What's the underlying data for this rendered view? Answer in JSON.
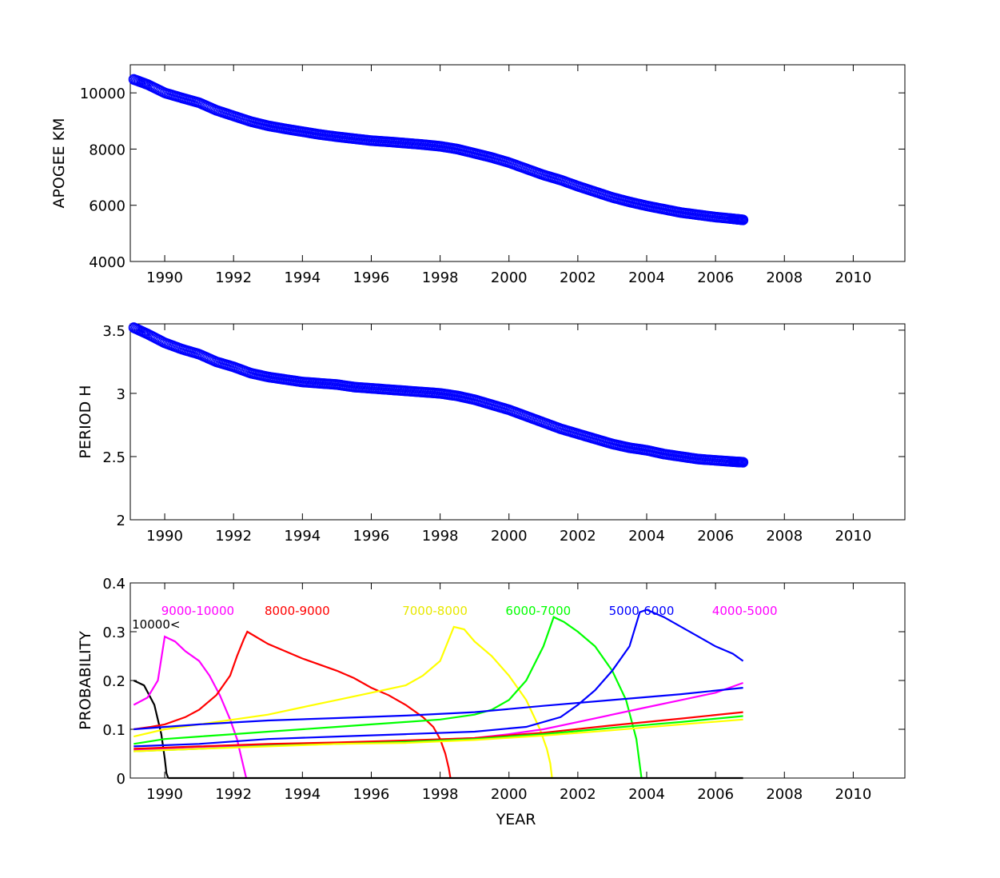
{
  "chart_data": [
    {
      "type": "scatter",
      "ylabel": "APOGEE KM",
      "xlabel": "",
      "xlim": [
        1989,
        2011.5
      ],
      "ylim": [
        4000,
        11000
      ],
      "xticks": [
        1990,
        1992,
        1994,
        1996,
        1998,
        2000,
        2002,
        2004,
        2006,
        2008,
        2010
      ],
      "yticks": [
        4000,
        6000,
        8000,
        10000
      ],
      "marker": "circle",
      "color": "#0000ff",
      "x": [
        1989.1,
        1989.5,
        1990,
        1990.5,
        1991,
        1991.5,
        1992,
        1992.5,
        1993,
        1993.5,
        1994,
        1994.5,
        1995,
        1995.5,
        1996,
        1996.5,
        1997,
        1997.5,
        1998,
        1998.5,
        1999,
        1999.5,
        2000,
        2000.5,
        2001,
        2001.5,
        2002,
        2002.5,
        2003,
        2003.5,
        2004,
        2004.5,
        2005,
        2005.5,
        2006,
        2006.5,
        2006.8
      ],
      "y": [
        10480,
        10300,
        10000,
        9820,
        9650,
        9380,
        9180,
        8980,
        8830,
        8720,
        8620,
        8520,
        8440,
        8370,
        8300,
        8260,
        8210,
        8160,
        8100,
        8000,
        7850,
        7700,
        7520,
        7300,
        7080,
        6900,
        6680,
        6480,
        6280,
        6120,
        5980,
        5860,
        5740,
        5660,
        5580,
        5520,
        5480
      ]
    },
    {
      "type": "scatter",
      "ylabel": "PERIOD H",
      "xlabel": "",
      "xlim": [
        1989,
        2011.5
      ],
      "ylim": [
        2,
        3.55
      ],
      "xticks": [
        1990,
        1992,
        1994,
        1996,
        1998,
        2000,
        2002,
        2004,
        2006,
        2008,
        2010
      ],
      "yticks": [
        2,
        2.5,
        3,
        3.5
      ],
      "marker": "circle",
      "color": "#0000ff",
      "x": [
        1989.1,
        1989.5,
        1990,
        1990.5,
        1991,
        1991.5,
        1992,
        1992.5,
        1993,
        1993.5,
        1994,
        1994.5,
        1995,
        1995.5,
        1996,
        1996.5,
        1997,
        1997.5,
        1998,
        1998.5,
        1999,
        1999.5,
        2000,
        2000.5,
        2001,
        2001.5,
        2002,
        2002.5,
        2003,
        2003.5,
        2004,
        2004.5,
        2005,
        2005.5,
        2006,
        2006.5,
        2006.8
      ],
      "y": [
        3.52,
        3.47,
        3.4,
        3.35,
        3.31,
        3.25,
        3.21,
        3.16,
        3.13,
        3.11,
        3.09,
        3.08,
        3.07,
        3.05,
        3.04,
        3.03,
        3.02,
        3.01,
        3.0,
        2.98,
        2.95,
        2.91,
        2.87,
        2.82,
        2.77,
        2.72,
        2.68,
        2.64,
        2.6,
        2.57,
        2.55,
        2.52,
        2.5,
        2.48,
        2.47,
        2.46,
        2.455
      ]
    },
    {
      "type": "line",
      "ylabel": "PROBABILITY",
      "xlabel": "YEAR",
      "xlim": [
        1989,
        2011.5
      ],
      "ylim": [
        0,
        0.4
      ],
      "xticks": [
        1990,
        1992,
        1994,
        1996,
        1998,
        2000,
        2002,
        2004,
        2006,
        2008,
        2010
      ],
      "yticks": [
        0,
        0.1,
        0.2,
        0.3,
        0.4
      ],
      "series": [
        {
          "name": "10000<",
          "color": "#000000",
          "label_pos": [
            1989.05,
            0.315
          ],
          "x": [
            1989.1,
            1989.4,
            1989.7,
            1989.9,
            1990.0,
            1990.05,
            1990.1
          ],
          "y": [
            0.2,
            0.19,
            0.15,
            0.09,
            0.04,
            0.01,
            0.0
          ]
        },
        {
          "name": "9000-10000",
          "color": "#ff00ff",
          "label_pos": [
            1989.9,
            0.343
          ],
          "x": [
            1989.1,
            1989.5,
            1989.8,
            1990.0,
            1990.3,
            1990.6,
            1991.0,
            1991.3,
            1991.6,
            1991.9,
            1992.1,
            1992.2,
            1992.3,
            1992.35,
            1992.37
          ],
          "y": [
            0.15,
            0.165,
            0.2,
            0.29,
            0.28,
            0.26,
            0.24,
            0.21,
            0.17,
            0.12,
            0.08,
            0.05,
            0.02,
            0.005,
            0.0
          ]
        },
        {
          "name": "8000-9000",
          "color": "#ff0000",
          "label_pos": [
            1992.9,
            0.343
          ],
          "x": [
            1989.1,
            1989.6,
            1990.0,
            1990.6,
            1991.0,
            1991.5,
            1991.9,
            1992.1,
            1992.3,
            1992.4,
            1993.0,
            1994.0,
            1995.0,
            1995.5,
            1996.0,
            1996.5,
            1997.0,
            1997.5,
            1997.8,
            1998.0,
            1998.15,
            1998.25,
            1998.3
          ],
          "y": [
            0.1,
            0.105,
            0.11,
            0.125,
            0.14,
            0.17,
            0.21,
            0.25,
            0.285,
            0.3,
            0.275,
            0.245,
            0.22,
            0.205,
            0.185,
            0.17,
            0.15,
            0.125,
            0.105,
            0.08,
            0.05,
            0.02,
            0.0
          ]
        },
        {
          "name": "7000-8000",
          "color": "#ffff00",
          "label_pos": [
            1996.9,
            0.343
          ],
          "x": [
            1989.1,
            1990.0,
            1991.0,
            1992.0,
            1993.0,
            1994.0,
            1995.0,
            1996.0,
            1997.0,
            1997.5,
            1998.0,
            1998.4,
            1998.7,
            1999.0,
            1999.5,
            2000.0,
            2000.5,
            2000.9,
            2001.1,
            2001.2,
            2001.25
          ],
          "y": [
            0.085,
            0.1,
            0.11,
            0.12,
            0.13,
            0.145,
            0.16,
            0.175,
            0.19,
            0.21,
            0.24,
            0.31,
            0.305,
            0.28,
            0.25,
            0.21,
            0.16,
            0.1,
            0.06,
            0.03,
            0.0
          ]
        },
        {
          "name": "6000-7000",
          "color": "#00ff00",
          "label_pos": [
            1999.9,
            0.343
          ],
          "x": [
            1989.1,
            1990.0,
            1991.0,
            1992.0,
            1993.0,
            1994.0,
            1995.0,
            1996.0,
            1997.0,
            1998.0,
            1999.0,
            1999.5,
            2000.0,
            2000.5,
            2001.0,
            2001.3,
            2001.6,
            2002.0,
            2002.5,
            2003.0,
            2003.4,
            2003.7,
            2003.85
          ],
          "y": [
            0.07,
            0.08,
            0.085,
            0.09,
            0.095,
            0.1,
            0.105,
            0.11,
            0.115,
            0.12,
            0.13,
            0.14,
            0.16,
            0.2,
            0.27,
            0.33,
            0.32,
            0.3,
            0.27,
            0.22,
            0.16,
            0.08,
            0.0
          ]
        },
        {
          "name": "5000-6000",
          "color": "#0000ff",
          "label_pos": [
            2002.9,
            0.343
          ],
          "x": [
            1989.1,
            1991.0,
            1993.0,
            1995.0,
            1997.0,
            1999.0,
            2000.5,
            2001.5,
            2002.0,
            2002.5,
            2003.0,
            2003.5,
            2003.8,
            2004.0,
            2004.5,
            2005.0,
            2005.5,
            2006.0,
            2006.5,
            2006.8
          ],
          "y": [
            0.065,
            0.07,
            0.08,
            0.085,
            0.09,
            0.095,
            0.105,
            0.125,
            0.15,
            0.18,
            0.22,
            0.27,
            0.34,
            0.345,
            0.33,
            0.31,
            0.29,
            0.27,
            0.255,
            0.24
          ]
        },
        {
          "name": "4000-5000",
          "color": "#ff00ff",
          "label_pos": [
            2005.9,
            0.343
          ],
          "x": [
            1989.1,
            1991.0,
            1993.0,
            1995.0,
            1997.0,
            1999.0,
            2000.0,
            2001.0,
            2002.0,
            2003.0,
            2004.0,
            2005.0,
            2006.0,
            2006.8
          ],
          "y": [
            0.058,
            0.064,
            0.068,
            0.072,
            0.076,
            0.082,
            0.09,
            0.1,
            0.115,
            0.13,
            0.145,
            0.16,
            0.175,
            0.195
          ]
        },
        {
          "name": "",
          "color": "#0000ff",
          "label_pos": null,
          "x": [
            1989.1,
            1991.0,
            1993.0,
            1995.0,
            1997.0,
            1999.0,
            2001.0,
            2003.0,
            2005.0,
            2006.8
          ],
          "y": [
            0.1,
            0.11,
            0.118,
            0.123,
            0.128,
            0.135,
            0.148,
            0.16,
            0.172,
            0.185
          ]
        },
        {
          "name": "",
          "color": "#ff0000",
          "label_pos": null,
          "x": [
            1989.1,
            1991.0,
            1993.0,
            1995.0,
            1997.0,
            1999.0,
            2001.0,
            2003.0,
            2005.0,
            2006.8
          ],
          "y": [
            0.06,
            0.065,
            0.07,
            0.073,
            0.077,
            0.082,
            0.093,
            0.108,
            0.122,
            0.135
          ]
        },
        {
          "name": "",
          "color": "#00ff00",
          "label_pos": null,
          "x": [
            1989.1,
            1991.0,
            1993.0,
            1995.0,
            1997.0,
            1999.0,
            2001.0,
            2003.0,
            2005.0,
            2006.8
          ],
          "y": [
            0.055,
            0.06,
            0.066,
            0.07,
            0.074,
            0.08,
            0.09,
            0.103,
            0.115,
            0.127
          ]
        },
        {
          "name": "",
          "color": "#ffff00",
          "label_pos": null,
          "x": [
            1989.1,
            1991.0,
            1993.0,
            1995.0,
            1997.0,
            1999.0,
            2001.0,
            2003.0,
            2005.0,
            2006.8
          ],
          "y": [
            0.055,
            0.06,
            0.065,
            0.07,
            0.072,
            0.078,
            0.087,
            0.098,
            0.11,
            0.12
          ]
        },
        {
          "name": "",
          "color": "#000000",
          "label_pos": null,
          "x": [
            1990.1,
            2006.8
          ],
          "y": [
            0.0,
            0.0
          ]
        }
      ]
    }
  ]
}
